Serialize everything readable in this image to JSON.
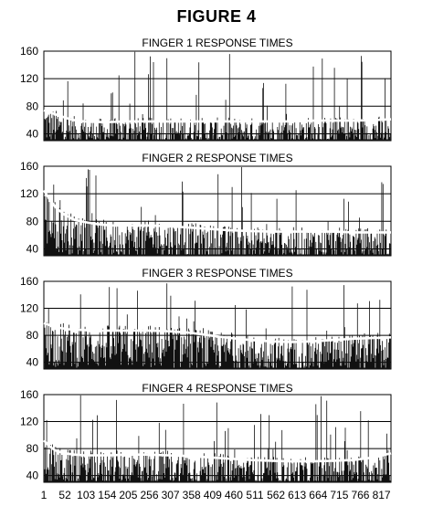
{
  "figure": {
    "title": "FIGURE 4"
  },
  "chart_data": [
    {
      "type": "line",
      "title": "FINGER 1 RESPONSE TIMES",
      "ylim": [
        30,
        160
      ],
      "yticks": [
        40,
        80,
        120,
        160
      ],
      "xlim": [
        1,
        840
      ],
      "grid": true,
      "series": [
        {
          "x": [
            1,
            20,
            40,
            60,
            80,
            100,
            130,
            160,
            200,
            250,
            300,
            350,
            400,
            450,
            500,
            550,
            600,
            650,
            700,
            750,
            800,
            840
          ],
          "values": [
            74,
            70,
            66,
            62,
            59,
            58,
            57,
            57,
            58,
            58,
            58,
            58,
            58,
            58,
            58,
            58,
            58,
            59,
            59,
            59,
            60,
            61
          ]
        }
      ]
    },
    {
      "type": "line",
      "title": "FINGER 2 RESPONSE TIMES",
      "ylim": [
        30,
        160
      ],
      "yticks": [
        40,
        80,
        120,
        160
      ],
      "xlim": [
        1,
        840
      ],
      "grid": true,
      "series": [
        {
          "x": [
            1,
            15,
            30,
            50,
            75,
            100,
            130,
            160,
            200,
            250,
            300,
            350,
            400,
            450,
            500,
            550,
            600,
            650,
            700,
            750,
            800,
            840
          ],
          "values": [
            125,
            112,
            100,
            90,
            82,
            79,
            76,
            74,
            74,
            74,
            73,
            71,
            69,
            67,
            66,
            65,
            65,
            65,
            65,
            64,
            64,
            64
          ]
        }
      ]
    },
    {
      "type": "line",
      "title": "FINGER 3 RESPONSE TIMES",
      "ylim": [
        30,
        160
      ],
      "yticks": [
        40,
        80,
        120,
        160
      ],
      "xlim": [
        1,
        840
      ],
      "grid": true,
      "series": [
        {
          "x": [
            1,
            20,
            40,
            60,
            90,
            120,
            150,
            200,
            250,
            300,
            350,
            400,
            450,
            500,
            550,
            600,
            650,
            700,
            750,
            800,
            840
          ],
          "values": [
            98,
            94,
            91,
            89,
            88,
            87,
            87,
            87,
            87,
            86,
            84,
            80,
            76,
            73,
            71,
            70,
            71,
            73,
            75,
            76,
            77
          ]
        }
      ]
    },
    {
      "type": "line",
      "title": "FINGER 4 RESPONSE TIMES",
      "ylim": [
        30,
        160
      ],
      "yticks": [
        40,
        80,
        120,
        160
      ],
      "xlim": [
        1,
        840
      ],
      "grid": true,
      "series": [
        {
          "x": [
            1,
            15,
            30,
            50,
            75,
            100,
            130,
            160,
            200,
            250,
            300,
            350,
            400,
            450,
            500,
            550,
            600,
            650,
            700,
            750,
            800,
            840
          ],
          "values": [
            92,
            83,
            77,
            73,
            71,
            70,
            70,
            70,
            71,
            71,
            70,
            69,
            67,
            65,
            63,
            62,
            61,
            61,
            62,
            63,
            67,
            73
          ]
        }
      ],
      "xticks": [
        1,
        52,
        103,
        154,
        205,
        256,
        307,
        358,
        409,
        460,
        511,
        562,
        613,
        664,
        715,
        766,
        817
      ]
    }
  ]
}
